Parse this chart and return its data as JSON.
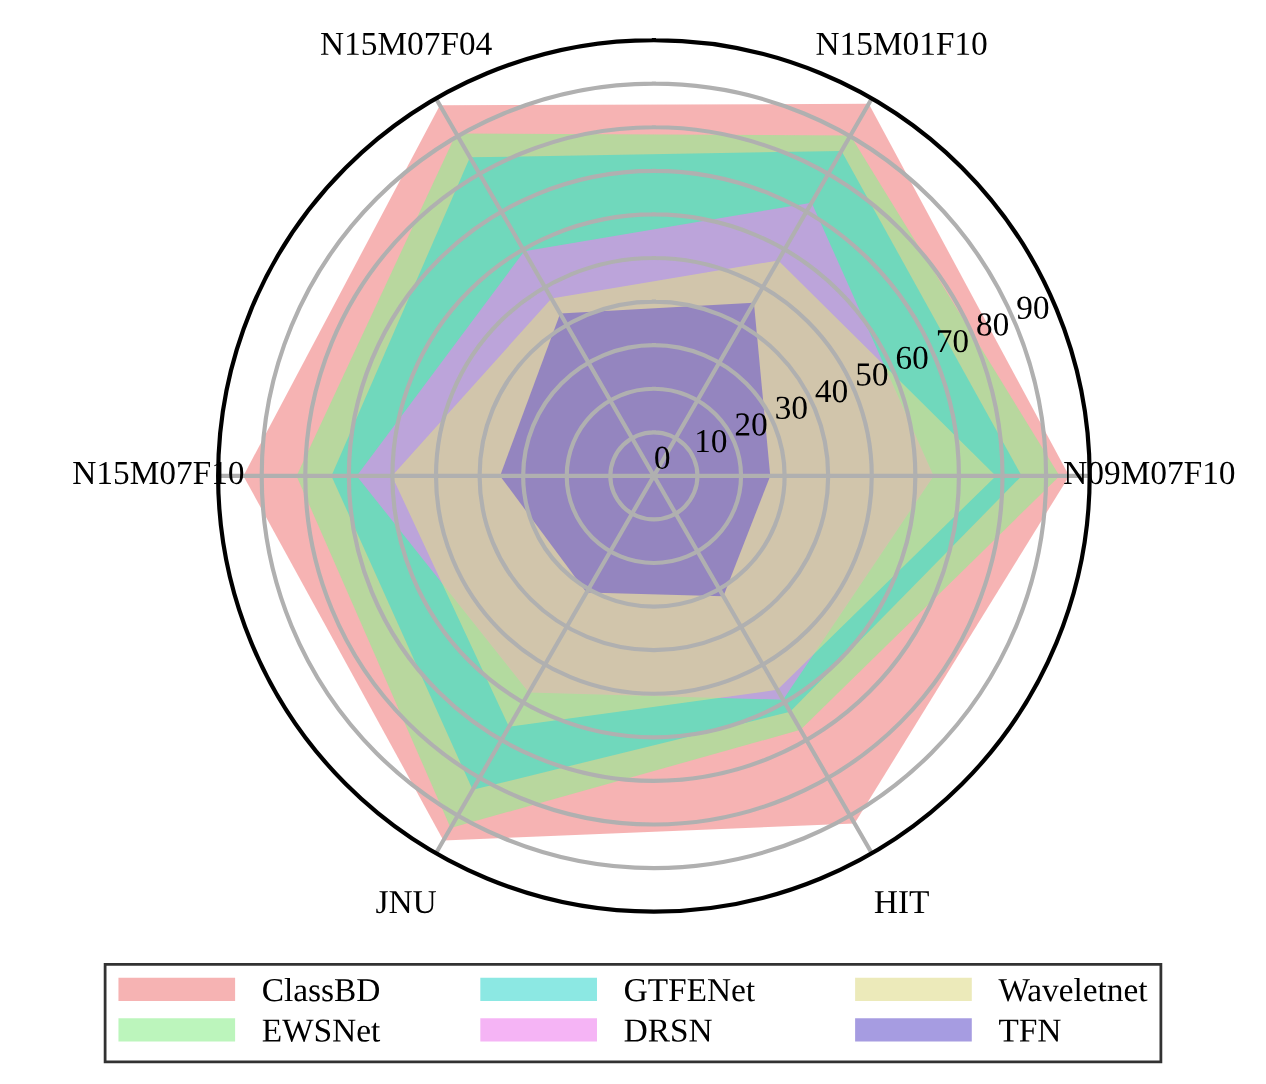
{
  "chart_data": {
    "type": "radar",
    "categories": [
      "N15M01F10",
      "N09M07F10",
      "HIT",
      "JNU",
      "N15M07F10",
      "N15M07F04"
    ],
    "series": [
      {
        "name": "ClassBD",
        "color": "#f08080",
        "values": [
          98.6,
          95.3,
          92.1,
          96.6,
          94.2,
          98.2
        ]
      },
      {
        "name": "EWSNet",
        "color": "#90ee90",
        "values": [
          90.2,
          93.1,
          67.3,
          93.3,
          82.0,
          90.7
        ]
      },
      {
        "name": "GTFENet",
        "color": "#40d8d0",
        "values": [
          86.1,
          84.4,
          62.5,
          83.2,
          74.0,
          84.4
        ]
      },
      {
        "name": "DRSN",
        "color": "#ee82ee",
        "values": [
          72.4,
          64.2,
          59.3,
          57.4,
          68.2,
          59.5
        ]
      },
      {
        "name": "Waveletnet",
        "color": "#e0dc8c",
        "values": [
          57.1,
          78.5,
          56.7,
          66.5,
          60.1,
          47.0
        ]
      },
      {
        "name": "TFN",
        "color": "#6a5acd",
        "values": [
          45.9,
          26.7,
          31.9,
          30.9,
          35.3,
          43.0
        ]
      }
    ],
    "ylim": [
      0,
      100
    ],
    "yticks": [
      0,
      10,
      20,
      30,
      40,
      50,
      60,
      70,
      80,
      90
    ],
    "grid": true,
    "legend": "bottom"
  }
}
